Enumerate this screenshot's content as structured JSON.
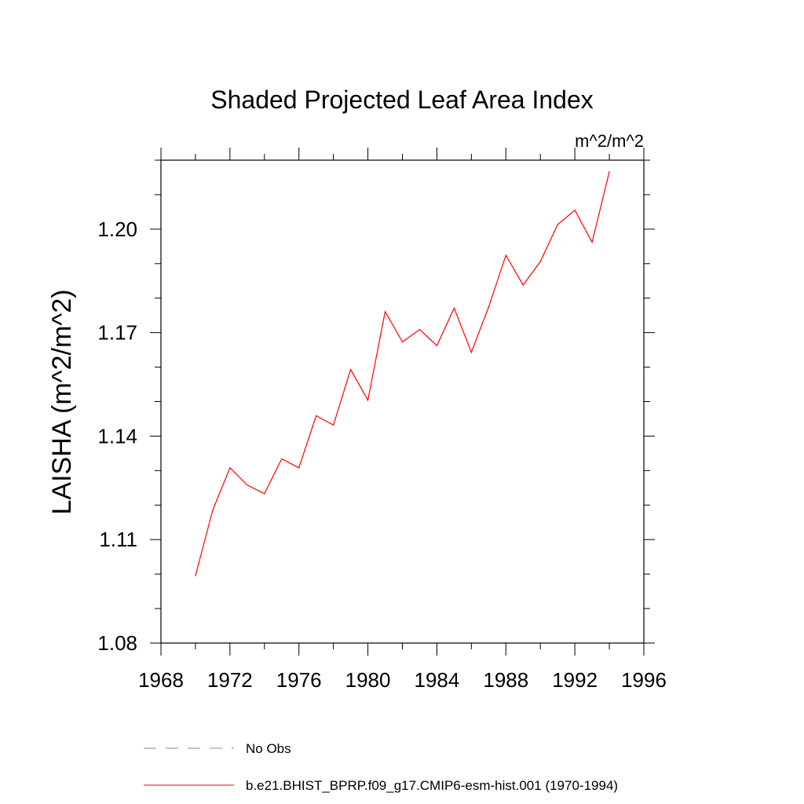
{
  "chart_data": {
    "type": "line",
    "title": "Shaded Projected Leaf Area Index",
    "units_label": "m^2/m^2",
    "ylabel": "LAISHA  (m^2/m^2)",
    "xlabel": "",
    "xlim": [
      1968,
      1996
    ],
    "ylim": [
      1.08,
      1.22
    ],
    "xticks": [
      1968,
      1972,
      1976,
      1980,
      1984,
      1988,
      1992,
      1996
    ],
    "xtick_labels": [
      "1968",
      "1972",
      "1976",
      "1980",
      "1984",
      "1988",
      "1992",
      "1996"
    ],
    "yticks": [
      1.08,
      1.11,
      1.14,
      1.17,
      1.2
    ],
    "ytick_labels": [
      "1.08",
      "1.11",
      "1.14",
      "1.17",
      "1.20"
    ],
    "series": [
      {
        "name": "b.e21.BHIST_BPRP.f09_g17.CMIP6-esm-hist.001 (1970-1994)",
        "color": "#ff0000",
        "style": "solid",
        "x": [
          1970,
          1971,
          1972,
          1973,
          1974,
          1975,
          1976,
          1977,
          1978,
          1979,
          1980,
          1981,
          1982,
          1983,
          1984,
          1985,
          1986,
          1987,
          1988,
          1989,
          1990,
          1991,
          1992,
          1993,
          1994
        ],
        "values": [
          1.0995,
          1.1185,
          1.1308,
          1.1258,
          1.1233,
          1.1334,
          1.1308,
          1.1459,
          1.1432,
          1.1593,
          1.1504,
          1.1761,
          1.1673,
          1.1709,
          1.1662,
          1.1771,
          1.1643,
          1.1774,
          1.1924,
          1.1838,
          1.1906,
          1.2013,
          1.2055,
          1.1962,
          1.2167
        ]
      }
    ],
    "legend": [
      {
        "label": "No Obs",
        "color": "#8080c0",
        "style": "dashed"
      },
      {
        "label": "b.e21.BHIST_BPRP.f09_g17.CMIP6-esm-hist.001 (1970-1994)",
        "color": "#ff0000",
        "style": "solid"
      }
    ],
    "legend_position": "bottom",
    "grid": false
  }
}
